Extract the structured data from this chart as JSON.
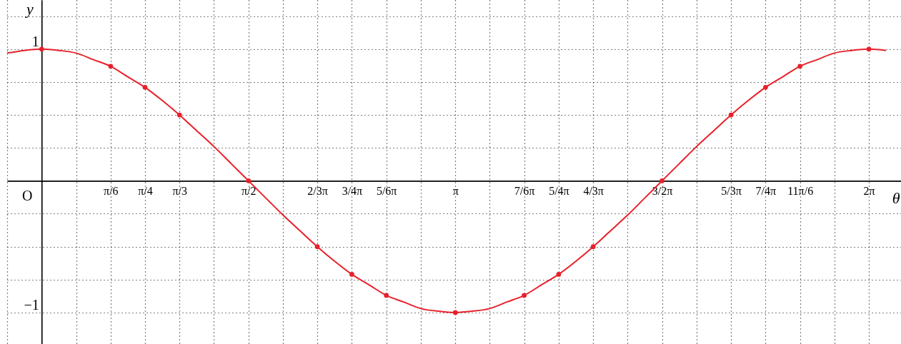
{
  "chart_data": {
    "type": "line",
    "xlabel": "θ",
    "ylabel": "y",
    "xlim": [
      -0.262,
      6.527
    ],
    "ylim": [
      -1.239,
      1.373
    ],
    "xticks": [
      {
        "value": -0.262,
        "label": null
      },
      {
        "value": 0,
        "label": null
      },
      {
        "value": 0.262,
        "label": null
      },
      {
        "value": 0.524,
        "label": "π/6"
      },
      {
        "value": 0.785,
        "label": "π/4"
      },
      {
        "value": 1.047,
        "label": "π/3"
      },
      {
        "value": 1.309,
        "label": null
      },
      {
        "value": 1.571,
        "label": "π/2"
      },
      {
        "value": 1.833,
        "label": null
      },
      {
        "value": 2.094,
        "label": "2/3π"
      },
      {
        "value": 2.356,
        "label": "3/4π"
      },
      {
        "value": 2.618,
        "label": "5/6π"
      },
      {
        "value": 2.88,
        "label": null
      },
      {
        "value": 3.142,
        "label": "π"
      },
      {
        "value": 3.403,
        "label": null
      },
      {
        "value": 3.665,
        "label": "7/6π"
      },
      {
        "value": 3.927,
        "label": "5/4π"
      },
      {
        "value": 4.189,
        "label": "4/3π"
      },
      {
        "value": 4.451,
        "label": null
      },
      {
        "value": 4.712,
        "label": "3/2π"
      },
      {
        "value": 4.974,
        "label": null
      },
      {
        "value": 5.236,
        "label": "5/3π"
      },
      {
        "value": 5.498,
        "label": "7/4π"
      },
      {
        "value": 5.76,
        "label": "11π/6"
      },
      {
        "value": 6.021,
        "label": null
      },
      {
        "value": 6.283,
        "label": "2π"
      }
    ],
    "yticks": [
      {
        "value": -1,
        "label": "−1"
      },
      {
        "value": -0.75,
        "label": null
      },
      {
        "value": -0.5,
        "label": null
      },
      {
        "value": -0.25,
        "label": null
      },
      {
        "value": 0,
        "label": null
      },
      {
        "value": 0.25,
        "label": null
      },
      {
        "value": 0.5,
        "label": null
      },
      {
        "value": 0.75,
        "label": null
      },
      {
        "value": 1,
        "label": "1"
      },
      {
        "value": 1.25,
        "label": null
      }
    ],
    "grid": true,
    "annotations": [
      "O"
    ],
    "series": [
      {
        "color": "#e8202a",
        "x": [
          -0.262,
          -0.131,
          0,
          0.131,
          0.262,
          0.393,
          0.524,
          0.654,
          0.785,
          0.916,
          1.047,
          1.178,
          1.309,
          1.44,
          1.571,
          1.702,
          1.833,
          1.963,
          2.094,
          2.225,
          2.356,
          2.487,
          2.618,
          2.749,
          2.88,
          3.011,
          3.142,
          3.272,
          3.403,
          3.534,
          3.665,
          3.796,
          3.927,
          4.058,
          4.189,
          4.32,
          4.451,
          4.581,
          4.712,
          4.843,
          4.974,
          5.105,
          5.236,
          5.367,
          5.498,
          5.629,
          5.76,
          5.89,
          6.021,
          6.152,
          6.283,
          6.414
        ],
        "values": [
          0.97,
          0.99,
          1,
          0.99,
          0.97,
          0.92,
          0.87,
          0.79,
          0.71,
          0.61,
          0.5,
          0.38,
          0.26,
          0.13,
          0,
          -0.13,
          -0.26,
          -0.38,
          -0.5,
          -0.61,
          -0.71,
          -0.79,
          -0.87,
          -0.92,
          -0.97,
          -0.99,
          -1,
          -0.99,
          -0.97,
          -0.92,
          -0.87,
          -0.79,
          -0.71,
          -0.61,
          -0.5,
          -0.38,
          -0.26,
          -0.13,
          0,
          0.13,
          0.26,
          0.38,
          0.5,
          0.61,
          0.71,
          0.79,
          0.87,
          0.92,
          0.97,
          0.99,
          1,
          0.99
        ]
      },
      {
        "type": "scatter",
        "marker": "circle",
        "color": "#e8202a",
        "x": [
          0,
          0.524,
          0.785,
          1.047,
          1.571,
          2.094,
          2.356,
          2.618,
          3.142,
          3.665,
          3.927,
          4.189,
          4.712,
          5.236,
          5.498,
          5.76,
          6.283
        ],
        "values": [
          1,
          0.87,
          0.71,
          0.5,
          0,
          -0.5,
          -0.71,
          -0.87,
          -1,
          -0.87,
          -0.71,
          -0.5,
          0,
          0.5,
          0.71,
          0.87,
          1
        ]
      }
    ]
  }
}
